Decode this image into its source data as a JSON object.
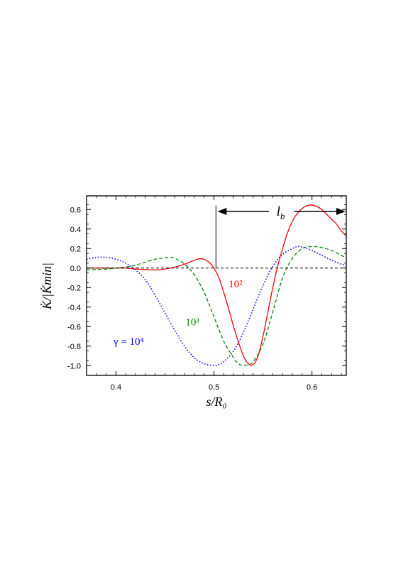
{
  "chart_data": {
    "type": "line",
    "xlabel": "s/R₀",
    "ylabel": "K̇/|K̇min|",
    "xlim": [
      0.37,
      0.635
    ],
    "ylim": [
      -1.1,
      0.74
    ],
    "x_ticks": [
      0.4,
      0.5,
      0.6
    ],
    "x_tick_labels": [
      "0.4",
      "0.5",
      "0.6"
    ],
    "y_ticks": [
      -1.0,
      -0.8,
      -0.6,
      -0.4,
      -0.2,
      0.0,
      0.2,
      0.4,
      0.6
    ],
    "y_tick_labels": [
      "-1.0",
      "-0.8",
      "-0.6",
      "-0.4",
      "-0.2",
      "0.0",
      "0.2",
      "0.4",
      "0.6"
    ],
    "grid": false,
    "zero_line": true,
    "series": [
      {
        "name": "10²",
        "color": "#ff0000",
        "style": "solid",
        "x": [
          0.37,
          0.38,
          0.39,
          0.4,
          0.41,
          0.42,
          0.43,
          0.44,
          0.45,
          0.46,
          0.47,
          0.475,
          0.48,
          0.485,
          0.49,
          0.495,
          0.5,
          0.505,
          0.51,
          0.515,
          0.52,
          0.525,
          0.53,
          0.535,
          0.54,
          0.545,
          0.55,
          0.555,
          0.56,
          0.565,
          0.57,
          0.575,
          0.58,
          0.585,
          0.59,
          0.595,
          0.6,
          0.605,
          0.61,
          0.615,
          0.62,
          0.625,
          0.63,
          0.635
        ],
        "y": [
          0.0,
          0.0,
          0.0,
          0.0,
          0.0,
          -0.01,
          -0.015,
          -0.02,
          -0.01,
          0.01,
          0.04,
          0.06,
          0.08,
          0.095,
          0.09,
          0.06,
          0.0,
          -0.1,
          -0.25,
          -0.42,
          -0.6,
          -0.76,
          -0.9,
          -0.98,
          -0.99,
          -0.9,
          -0.7,
          -0.45,
          -0.2,
          0.02,
          0.2,
          0.36,
          0.48,
          0.56,
          0.61,
          0.64,
          0.645,
          0.63,
          0.6,
          0.55,
          0.5,
          0.45,
          0.38,
          0.33
        ]
      },
      {
        "name": "10³",
        "color": "#008800",
        "style": "dashed",
        "x": [
          0.37,
          0.38,
          0.39,
          0.4,
          0.41,
          0.42,
          0.43,
          0.44,
          0.45,
          0.455,
          0.46,
          0.47,
          0.48,
          0.49,
          0.5,
          0.51,
          0.52,
          0.525,
          0.53,
          0.535,
          0.54,
          0.55,
          0.56,
          0.57,
          0.58,
          0.59,
          0.6,
          0.61,
          0.62,
          0.63,
          0.635
        ],
        "y": [
          -0.02,
          -0.015,
          -0.01,
          0.0,
          0.01,
          0.03,
          0.06,
          0.09,
          0.105,
          0.11,
          0.1,
          0.04,
          -0.07,
          -0.25,
          -0.5,
          -0.75,
          -0.92,
          -0.98,
          -1.0,
          -0.99,
          -0.96,
          -0.78,
          -0.45,
          -0.1,
          0.1,
          0.2,
          0.22,
          0.21,
          0.18,
          0.13,
          0.1
        ]
      },
      {
        "name": "γ = 10⁴",
        "color": "#0000ff",
        "style": "dotted",
        "x": [
          0.37,
          0.38,
          0.39,
          0.4,
          0.41,
          0.42,
          0.43,
          0.44,
          0.45,
          0.46,
          0.47,
          0.48,
          0.49,
          0.5,
          0.505,
          0.51,
          0.52,
          0.53,
          0.54,
          0.55,
          0.56,
          0.57,
          0.58,
          0.585,
          0.59,
          0.6,
          0.61,
          0.62,
          0.63,
          0.635
        ],
        "y": [
          0.09,
          0.11,
          0.11,
          0.09,
          0.05,
          -0.02,
          -0.12,
          -0.28,
          -0.46,
          -0.64,
          -0.8,
          -0.92,
          -0.98,
          -1.0,
          -0.99,
          -0.96,
          -0.85,
          -0.66,
          -0.42,
          -0.18,
          0.02,
          0.14,
          0.2,
          0.22,
          0.215,
          0.18,
          0.13,
          0.08,
          0.04,
          0.03
        ]
      }
    ],
    "annotations": [
      {
        "text": "10²",
        "color": "#ff0000",
        "x": 0.522,
        "y": -0.16
      },
      {
        "text": "10³",
        "color": "#008800",
        "x": 0.478,
        "y": -0.55
      },
      {
        "text": "γ = 10⁴",
        "color": "#0000ff",
        "x": 0.413,
        "y": -0.75
      },
      {
        "text": "l",
        "subscript": "b",
        "color": "#000000",
        "x": 0.568,
        "y": 0.58
      }
    ],
    "lb_marker": {
      "x_start": 0.502,
      "x_end": 0.635,
      "y": 0.58,
      "vertical_line_from": 0.0,
      "vertical_line_to": 0.64
    }
  }
}
